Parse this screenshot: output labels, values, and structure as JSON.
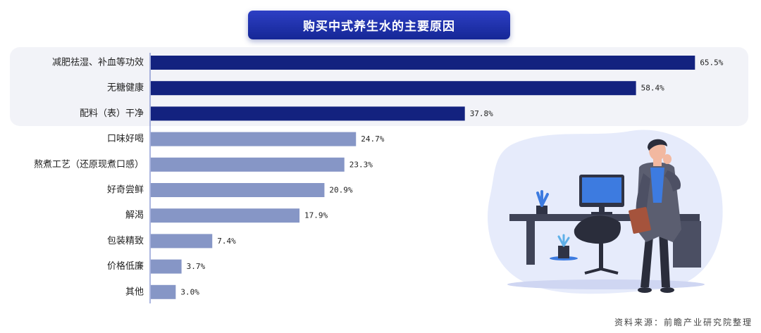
{
  "chart_data": {
    "type": "bar",
    "orientation": "horizontal",
    "title": "购买中式养生水的主要原因",
    "categories": [
      "减肥祛湿、补血等功效",
      "无糖健康",
      "配料（表）干净",
      "口味好喝",
      "熬煮工艺（还原现煮口感）",
      "好奇尝鲜",
      "解渴",
      "包装精致",
      "价格低廉",
      "其他"
    ],
    "values": [
      65.5,
      58.4,
      37.8,
      24.7,
      23.3,
      20.9,
      17.9,
      7.4,
      3.7,
      3.0
    ],
    "value_labels": [
      "65.5%",
      "58.4%",
      "37.8%",
      "24.7%",
      "23.3%",
      "20.9%",
      "17.9%",
      "7.4%",
      "3.7%",
      "3.0%"
    ],
    "highlighted_top": 3,
    "colors": {
      "highlight": "#13227f",
      "normal": "#8696c6"
    },
    "xlim": [
      0,
      67
    ],
    "grid": false,
    "legend": "none"
  },
  "source": "资料来源：前瞻产业研究院整理"
}
